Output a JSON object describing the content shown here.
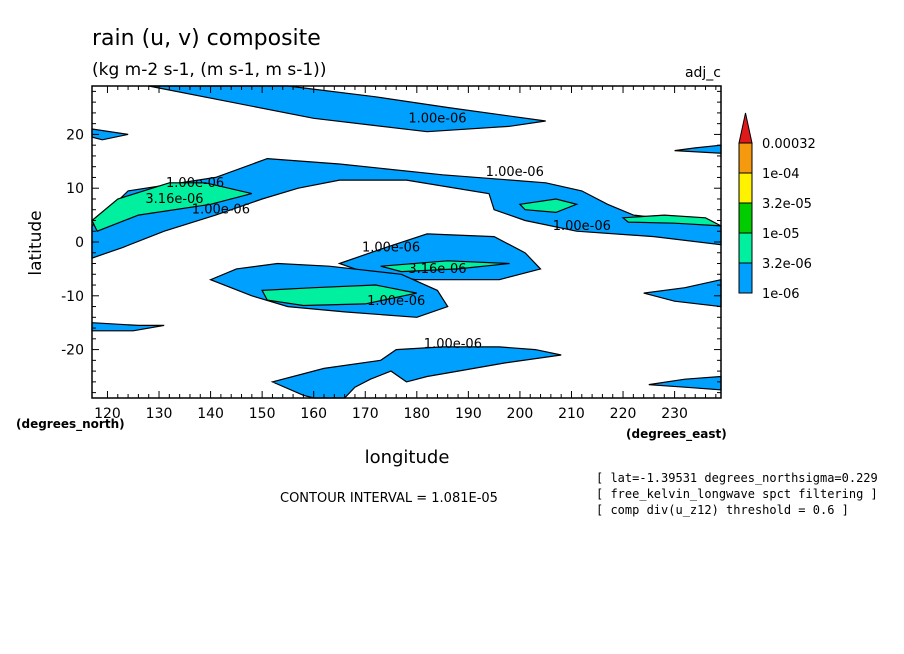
{
  "chart_data": {
    "type": "contour",
    "title": "rain (u, v) composite",
    "subtitle": "(kg m-2 s-1, (m s-1, m s-1))",
    "run_label": "adj_c",
    "xlabel": "longitude",
    "ylabel": "latitude",
    "x_unit_label": "(degrees_east)",
    "y_unit_label": "(degrees_north)",
    "xlim": [
      117,
      239
    ],
    "ylim": [
      -29,
      29
    ],
    "xticks": [
      120,
      130,
      140,
      150,
      160,
      170,
      180,
      190,
      200,
      210,
      220,
      230
    ],
    "yticks": [
      -20,
      -10,
      0,
      10,
      20
    ],
    "contour_interval_text": "CONTOUR INTERVAL = 1.081E-05",
    "notes": [
      "[ lat=-1.39531 degrees_northsigma=0.229",
      "[ free_kelvin_longwave spct filtering ]",
      "[ comp div(u_z12) threshold = 0.6 ]"
    ],
    "colorbar": [
      {
        "label": "0.00032",
        "color": "#e0191c"
      },
      {
        "label": "1e-04",
        "color": "#f59a0f"
      },
      {
        "label": "3.2e-05",
        "color": "#fff200"
      },
      {
        "label": "1e-05",
        "color": "#00cc00"
      },
      {
        "label": "3.2e-06",
        "color": "#00f0a0"
      },
      {
        "label": "1e-06",
        "color": "#00a0ff"
      }
    ],
    "contour_labels": [
      {
        "text": "1.00e-06",
        "x": 184,
        "y": 23
      },
      {
        "text": "1.00e-06",
        "x": 199,
        "y": 13
      },
      {
        "text": "1.00e-06",
        "x": 137,
        "y": 11
      },
      {
        "text": "3.16e-06",
        "x": 133,
        "y": 8
      },
      {
        "text": "1.00e-06",
        "x": 142,
        "y": 6
      },
      {
        "text": "1.00e-06",
        "x": 212,
        "y": 3
      },
      {
        "text": "1.00e-06",
        "x": 175,
        "y": -1
      },
      {
        "text": "3.16e-06",
        "x": 184,
        "y": -5
      },
      {
        "text": "1.00e-06",
        "x": 176,
        "y": -11
      },
      {
        "text": "1.00e-06",
        "x": 187,
        "y": -19
      }
    ],
    "regions": [
      {
        "level": "1e-06",
        "points": [
          [
            128,
            29
          ],
          [
            160,
            23
          ],
          [
            182,
            20.5
          ],
          [
            198,
            21.5
          ],
          [
            205,
            22.5
          ],
          [
            186,
            25
          ],
          [
            172,
            27
          ],
          [
            155,
            29
          ]
        ]
      },
      {
        "level": "1e-06",
        "points": [
          [
            117,
            21
          ],
          [
            124,
            20
          ],
          [
            119,
            19
          ],
          [
            117,
            19.5
          ]
        ]
      },
      {
        "level": "1e-06",
        "points": [
          [
            117,
            3
          ],
          [
            124,
            9.5
          ],
          [
            141,
            12
          ],
          [
            151,
            15.5
          ],
          [
            165,
            14.5
          ],
          [
            185,
            12.5
          ],
          [
            205,
            11
          ],
          [
            212,
            9.5
          ],
          [
            217,
            7
          ],
          [
            222,
            5
          ],
          [
            231,
            4
          ],
          [
            239,
            3
          ],
          [
            239,
            -0.5
          ],
          [
            226,
            1
          ],
          [
            211,
            2
          ],
          [
            201,
            4
          ],
          [
            195,
            6
          ],
          [
            194,
            9
          ],
          [
            178,
            11.5
          ],
          [
            165,
            11.5
          ],
          [
            157,
            10
          ],
          [
            150,
            8
          ],
          [
            141,
            5
          ],
          [
            131,
            2
          ],
          [
            123,
            -1
          ],
          [
            117,
            -3
          ]
        ]
      },
      {
        "level": "3.2e-06",
        "points": [
          [
            117,
            4
          ],
          [
            122,
            8
          ],
          [
            132,
            11
          ],
          [
            139,
            11
          ],
          [
            148,
            9
          ],
          [
            140,
            7
          ],
          [
            126,
            5
          ],
          [
            118,
            2
          ]
        ]
      },
      {
        "level": "3.2e-06",
        "points": [
          [
            200,
            7
          ],
          [
            207,
            8
          ],
          [
            211,
            7
          ],
          [
            207,
            5.5
          ],
          [
            201,
            6
          ]
        ]
      },
      {
        "level": "3.2e-06",
        "points": [
          [
            220,
            4.5
          ],
          [
            228,
            5
          ],
          [
            236,
            4.5
          ],
          [
            239,
            3
          ],
          [
            230,
            3.5
          ],
          [
            221,
            3.7
          ]
        ]
      },
      {
        "level": "1e-06",
        "points": [
          [
            165,
            -4
          ],
          [
            174,
            -1
          ],
          [
            182,
            1.5
          ],
          [
            195,
            1
          ],
          [
            201,
            -2
          ],
          [
            204,
            -5
          ],
          [
            196,
            -7
          ],
          [
            180,
            -7
          ],
          [
            171,
            -6
          ]
        ]
      },
      {
        "level": "1e-06",
        "points": [
          [
            153,
            -4
          ],
          [
            163,
            -4.5
          ],
          [
            177,
            -6
          ],
          [
            184,
            -9
          ],
          [
            186,
            -12
          ],
          [
            180,
            -14
          ],
          [
            166,
            -13
          ],
          [
            155,
            -12
          ],
          [
            148,
            -10
          ],
          [
            140,
            -7
          ],
          [
            145,
            -5
          ]
        ]
      },
      {
        "level": "3.2e-06",
        "points": [
          [
            173,
            -4.5
          ],
          [
            186,
            -3.5
          ],
          [
            198,
            -4
          ],
          [
            188,
            -5
          ],
          [
            177,
            -5.5
          ]
        ]
      },
      {
        "level": "3.2e-06",
        "points": [
          [
            150,
            -9
          ],
          [
            160,
            -8.5
          ],
          [
            172,
            -8
          ],
          [
            180,
            -9.5
          ],
          [
            170,
            -11.5
          ],
          [
            158,
            -11.8
          ],
          [
            151,
            -10.8
          ]
        ]
      },
      {
        "level": "1e-06",
        "points": [
          [
            117,
            -15
          ],
          [
            126,
            -15.5
          ],
          [
            131,
            -15.5
          ],
          [
            125,
            -16.5
          ],
          [
            117,
            -16.5
          ]
        ]
      },
      {
        "level": "1e-06",
        "points": [
          [
            239,
            -7
          ],
          [
            232,
            -8.5
          ],
          [
            224,
            -9.5
          ],
          [
            230,
            -11
          ],
          [
            239,
            -12
          ]
        ]
      },
      {
        "level": "1e-06",
        "points": [
          [
            160,
            -29
          ],
          [
            158,
            -28.5
          ],
          [
            152,
            -26
          ],
          [
            162,
            -23.5
          ],
          [
            173,
            -22
          ],
          [
            176,
            -20
          ],
          [
            185,
            -19.5
          ],
          [
            196,
            -19.5
          ],
          [
            203,
            -20
          ],
          [
            208,
            -21
          ],
          [
            197,
            -22.5
          ],
          [
            188,
            -24
          ],
          [
            182,
            -25
          ],
          [
            178,
            -26
          ],
          [
            175,
            -24
          ],
          [
            171,
            -25.5
          ],
          [
            168,
            -27
          ],
          [
            166,
            -29
          ]
        ]
      },
      {
        "level": "1e-06",
        "points": [
          [
            239,
            -25
          ],
          [
            232,
            -25.5
          ],
          [
            225,
            -26.5
          ],
          [
            232,
            -27
          ],
          [
            239,
            -27.5
          ]
        ]
      },
      {
        "level": "1e-06",
        "points": [
          [
            239,
            18
          ],
          [
            234,
            17.5
          ],
          [
            230,
            17
          ],
          [
            239,
            16.5
          ]
        ]
      }
    ]
  }
}
